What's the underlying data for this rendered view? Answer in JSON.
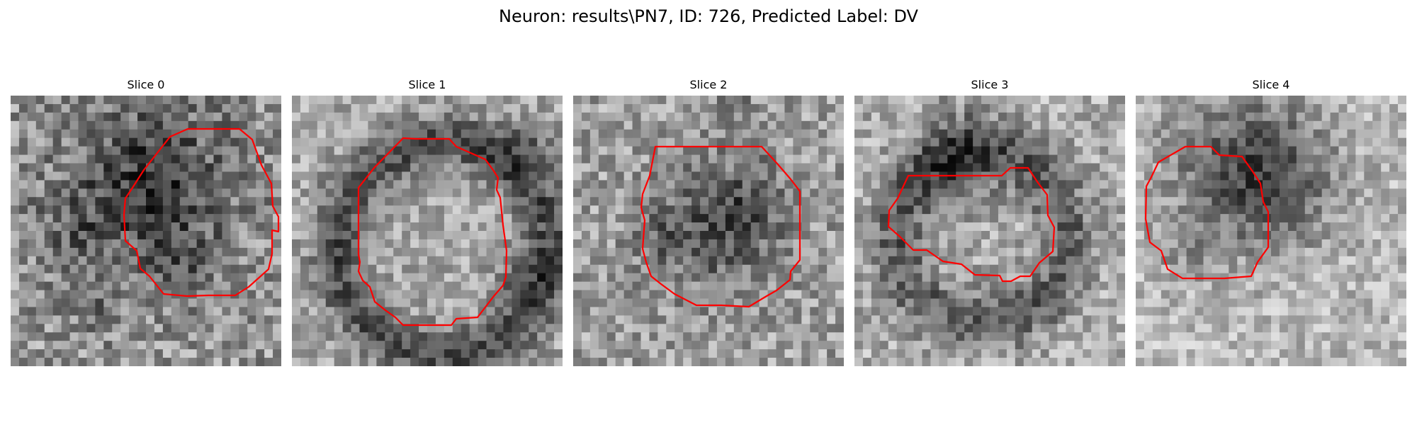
{
  "figure": {
    "title": "Neuron: results\\PN7, ID: 726, Predicted Label: DV"
  },
  "slices": [
    {
      "title": "Slice 0"
    },
    {
      "title": "Slice 1"
    },
    {
      "title": "Slice 2"
    },
    {
      "title": "Slice 3"
    },
    {
      "title": "Slice 4"
    }
  ],
  "colors": {
    "contour": "#ff0000",
    "background": "#ffffff"
  }
}
